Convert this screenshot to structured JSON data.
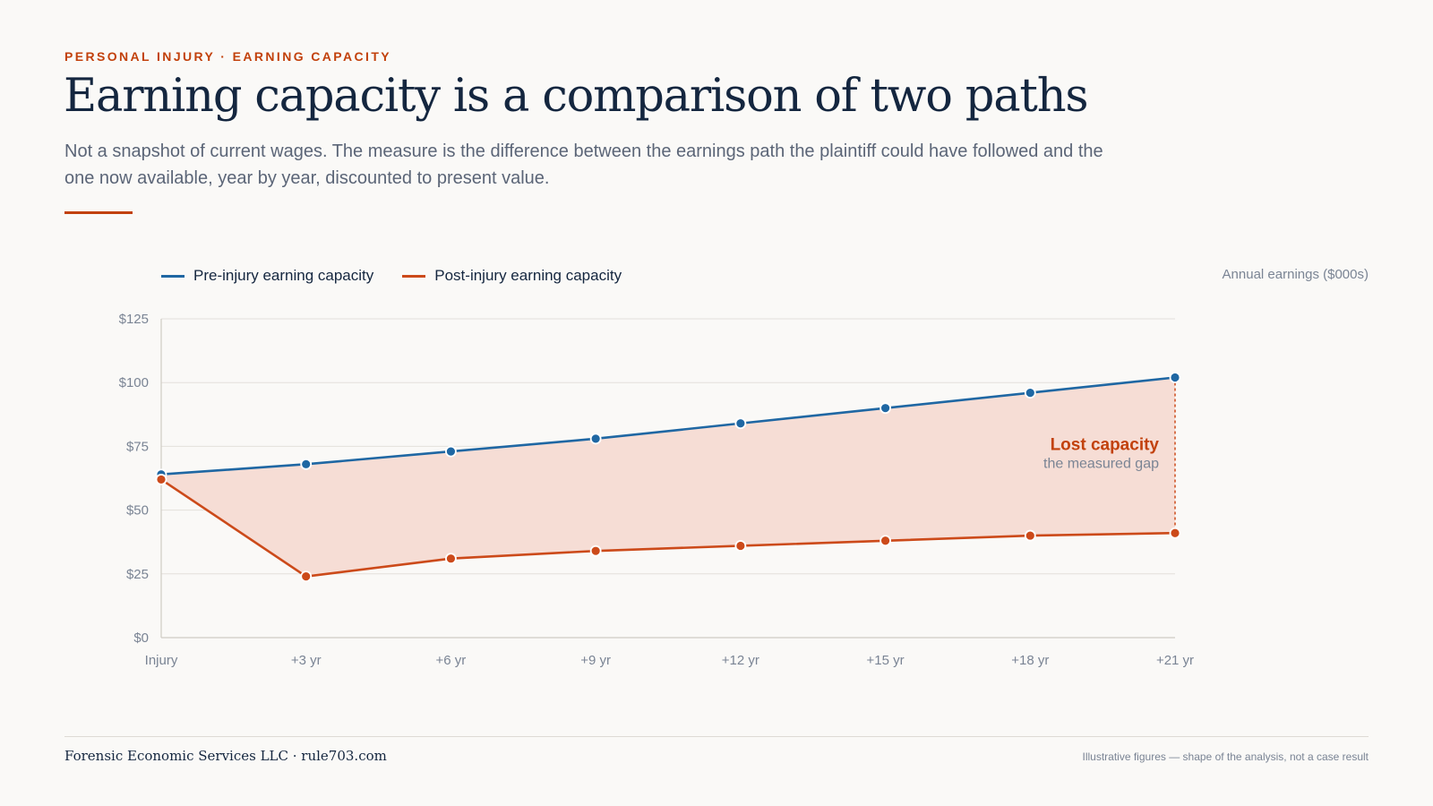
{
  "header": {
    "eyebrow": "PERSONAL INJURY · EARNING CAPACITY",
    "title": "Earning capacity is a comparison of two paths",
    "subtitle": "Not a snapshot of current wages. The measure is the difference between the earnings path the plaintiff could have followed and the one now available, year by year, discounted to present value."
  },
  "chart_data": {
    "type": "line",
    "categories": [
      "Injury",
      "+3 yr",
      "+6 yr",
      "+9 yr",
      "+12 yr",
      "+15 yr",
      "+18 yr",
      "+21 yr"
    ],
    "series": [
      {
        "name": "Pre-injury earning capacity",
        "color": "#1f67a3",
        "values": [
          64,
          68,
          73,
          78,
          84,
          90,
          96,
          102
        ]
      },
      {
        "name": "Post-injury earning capacity",
        "color": "#cc4a1a",
        "values": [
          62,
          24,
          31,
          34,
          36,
          38,
          40,
          41
        ]
      }
    ],
    "ylabel": "Annual earnings ($000s)",
    "ylim": [
      0,
      125
    ],
    "yticks": [
      0,
      25,
      50,
      75,
      100,
      125
    ],
    "ytick_labels": [
      "$0",
      "$25",
      "$50",
      "$75",
      "$100",
      "$125"
    ],
    "grid": true,
    "legend_position": "top-left",
    "fill_between": {
      "color": "#f6ddd5"
    },
    "annotation": {
      "title": "Lost capacity",
      "subtitle": "the measured gap"
    }
  },
  "footer": {
    "left": "Forensic Economic Services LLC · rule703.com",
    "right": "Illustrative figures — shape of the analysis, not a case result"
  }
}
